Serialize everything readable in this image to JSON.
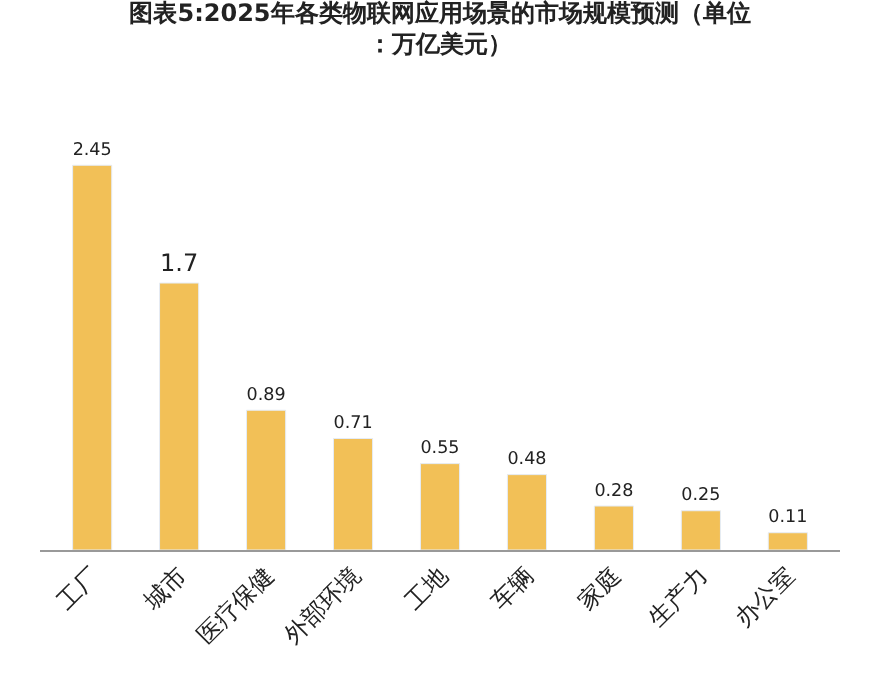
{
  "chart_data": {
    "type": "bar",
    "title": "图表5:2025年各类物联网应用场景的市场规模预测（单位：万亿美元）",
    "categories": [
      "工厂",
      "城市",
      "医疗保健",
      "外部环境",
      "工地",
      "车辆",
      "家庭",
      "生产力",
      "办公室"
    ],
    "values": [
      2.45,
      1.7,
      0.89,
      0.71,
      0.55,
      0.48,
      0.28,
      0.25,
      0.11
    ],
    "color": "#f2c057",
    "data_labels": true,
    "legend": false
  }
}
